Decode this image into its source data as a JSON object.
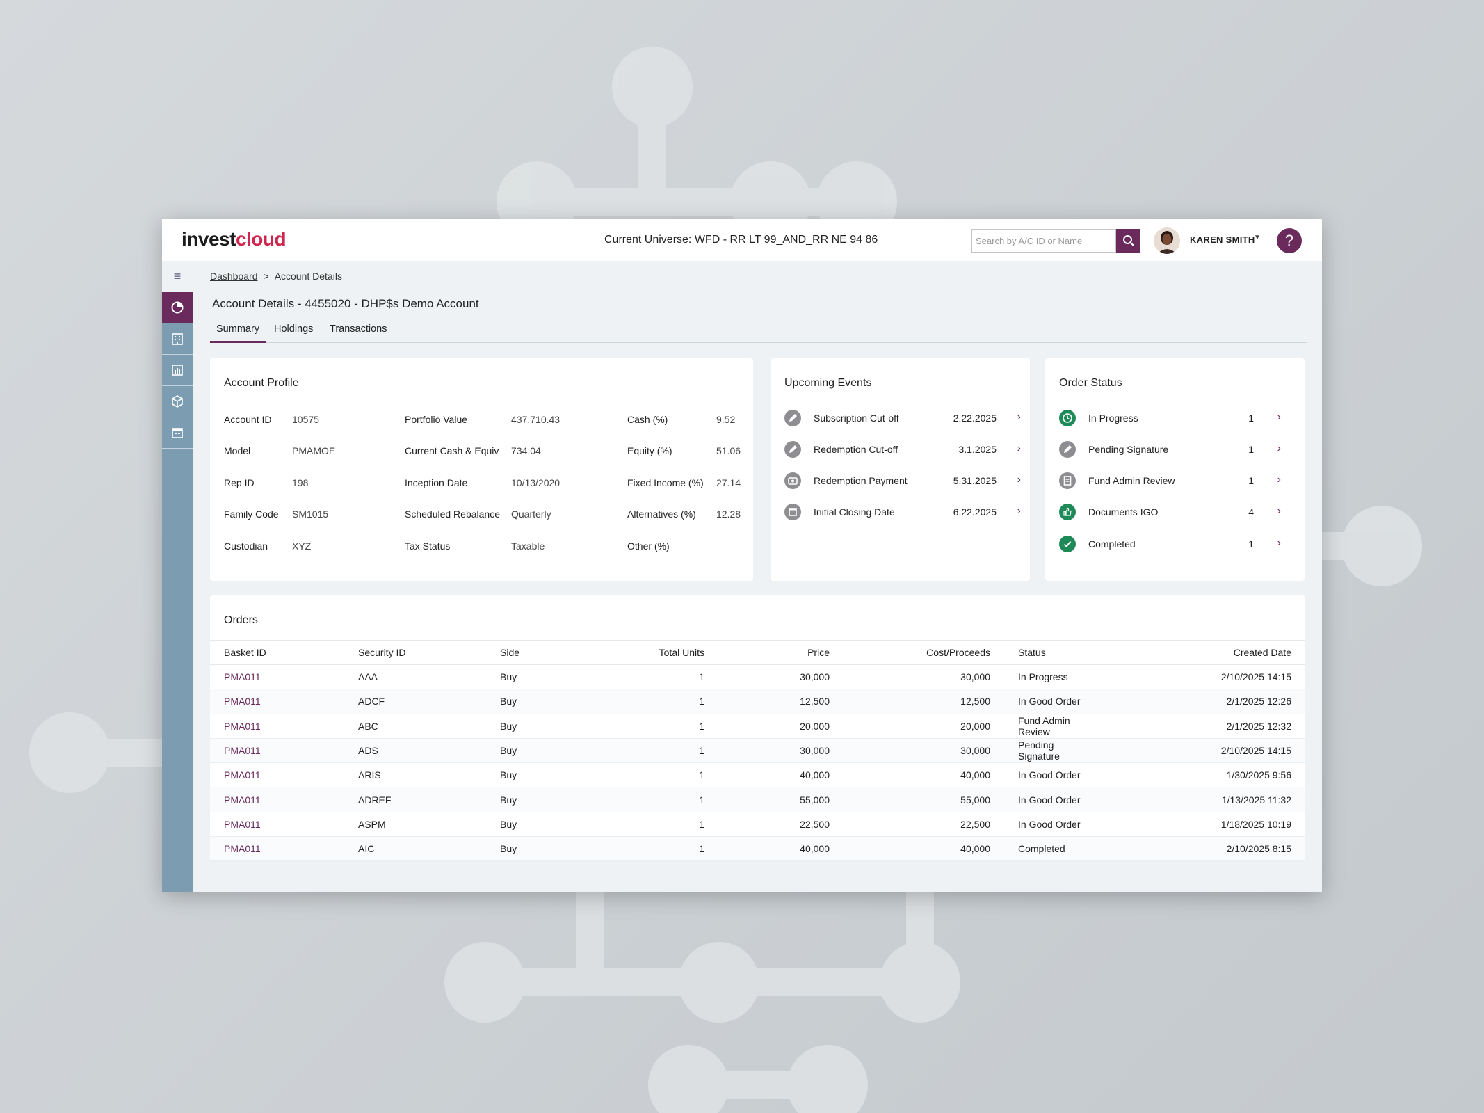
{
  "header": {
    "logo_part1": "invest",
    "logo_part2": "cloud",
    "universe": "Current Universe: WFD - RR LT 99_AND_RR NE 94 86",
    "search_placeholder": "Search by A/C ID or Name",
    "username": "KAREN SMITH",
    "help": "?"
  },
  "breadcrumb": {
    "link": "Dashboard",
    "separator": ">",
    "current": "Account Details"
  },
  "page_title": "Account Details - 4455020 - DHP$s Demo Account",
  "tabs": [
    "Summary",
    "Holdings",
    "Transactions"
  ],
  "active_tab": "Summary",
  "account_profile": {
    "title": "Account Profile",
    "col1": [
      {
        "label": "Account ID",
        "value": "10575"
      },
      {
        "label": "Model",
        "value": "PMAMOE"
      },
      {
        "label": "Rep ID",
        "value": "198"
      },
      {
        "label": "Family Code",
        "value": "SM1015"
      },
      {
        "label": "Custodian",
        "value": "XYZ"
      }
    ],
    "col2": [
      {
        "label": "Portfolio Value",
        "value": "437,710.43"
      },
      {
        "label": "Current Cash & Equiv",
        "value": "734.04"
      },
      {
        "label": "Inception Date",
        "value": "10/13/2020"
      },
      {
        "label": "Scheduled Rebalance",
        "value": "Quarterly"
      },
      {
        "label": "Tax Status",
        "value": "Taxable"
      }
    ],
    "col3": [
      {
        "label": "Cash (%)",
        "value": "9.52"
      },
      {
        "label": "Equity (%)",
        "value": "51.06"
      },
      {
        "label": "Fixed Income (%)",
        "value": "27.14"
      },
      {
        "label": "Alternatives (%)",
        "value": "12.28"
      },
      {
        "label": "Other (%)",
        "value": ""
      }
    ]
  },
  "upcoming_events": {
    "title": "Upcoming Events",
    "items": [
      {
        "label": "Subscription Cut-off",
        "date": "2.22.2025",
        "icon": "pen-icon"
      },
      {
        "label": "Redemption Cut-off",
        "date": "3.1.2025",
        "icon": "pen-icon"
      },
      {
        "label": "Redemption Payment",
        "date": "5.31.2025",
        "icon": "payment-icon"
      },
      {
        "label": "Initial Closing Date",
        "date": "6.22.2025",
        "icon": "calendar-icon"
      }
    ]
  },
  "order_status": {
    "title": "Order Status",
    "items": [
      {
        "label": "In Progress",
        "count": "1",
        "icon": "clock-icon",
        "color": "#1e8a57"
      },
      {
        "label": "Pending Signature",
        "count": "1",
        "icon": "pen-icon",
        "color": "#8e8e92"
      },
      {
        "label": "Fund Admin Review",
        "count": "1",
        "icon": "document-icon",
        "color": "#8e8e92"
      },
      {
        "label": "Documents IGO",
        "count": "4",
        "icon": "thumbs-up-icon",
        "color": "#1e8a57"
      },
      {
        "label": "Completed",
        "count": "1",
        "icon": "check-icon",
        "color": "#1e8a57"
      }
    ]
  },
  "orders": {
    "title": "Orders",
    "columns": [
      "Basket ID",
      "Security ID",
      "Side",
      "Total Units",
      "Price",
      "Cost/Proceeds",
      "Status",
      "Created Date"
    ],
    "rows": [
      [
        "PMA011",
        "AAA",
        "Buy",
        "1",
        "30,000",
        "30,000",
        "In Progress",
        "2/10/2025 14:15"
      ],
      [
        "PMA011",
        "ADCF",
        "Buy",
        "1",
        "12,500",
        "12,500",
        "In Good Order",
        "2/1/2025 12:26"
      ],
      [
        "PMA011",
        "ABC",
        "Buy",
        "1",
        "20,000",
        "20,000",
        "Fund Admin Review",
        "2/1/2025 12:32"
      ],
      [
        "PMA011",
        "ADS",
        "Buy",
        "1",
        "30,000",
        "30,000",
        "Pending Signature",
        "2/10/2025 14:15"
      ],
      [
        "PMA011",
        "ARIS",
        "Buy",
        "1",
        "40,000",
        "40,000",
        "In Good Order",
        "1/30/2025 9:56"
      ],
      [
        "PMA011",
        "ADREF",
        "Buy",
        "1",
        "55,000",
        "55,000",
        "In Good Order",
        "1/13/2025 11:32"
      ],
      [
        "PMA011",
        "ASPM",
        "Buy",
        "1",
        "22,500",
        "22,500",
        "In Good Order",
        "1/18/2025 10:19"
      ],
      [
        "PMA011",
        "AIC",
        "Buy",
        "1",
        "40,000",
        "40,000",
        "Completed",
        "2/10/2025 8:15"
      ]
    ]
  },
  "colors": {
    "brand": "#6a2a5c",
    "logo_accent": "#d0264e",
    "sidebar": "#7b9cb1",
    "success": "#1e8a57"
  }
}
